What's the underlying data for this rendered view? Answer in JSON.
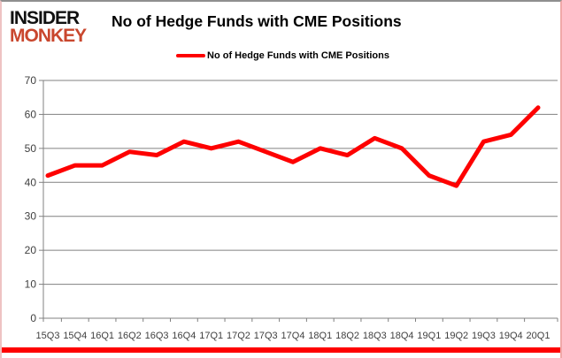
{
  "header": {
    "logo_line1": "INSIDER",
    "logo_line2": "MONKEY",
    "title": "No of Hedge Funds with CME Positions"
  },
  "legend": {
    "label": "No of Hedge Funds with CME Positions",
    "line_color": "#fe0000"
  },
  "chart_data": {
    "type": "line",
    "title": "No of Hedge Funds with CME Positions",
    "categories": [
      "15Q3",
      "15Q4",
      "16Q1",
      "16Q2",
      "16Q3",
      "16Q4",
      "17Q1",
      "17Q2",
      "17Q3",
      "17Q4",
      "18Q1",
      "18Q2",
      "18Q3",
      "18Q4",
      "19Q1",
      "19Q2",
      "19Q3",
      "19Q4",
      "20Q1"
    ],
    "series": [
      {
        "name": "No of Hedge Funds with CME Positions",
        "color": "#fe0000",
        "values": [
          42,
          45,
          45,
          49,
          48,
          52,
          50,
          52,
          49,
          46,
          50,
          48,
          53,
          50,
          42,
          39,
          52,
          54,
          62
        ]
      }
    ],
    "xlabel": "",
    "ylabel": "",
    "ylim": [
      0,
      70
    ],
    "yticks": [
      0,
      10,
      20,
      30,
      40,
      50,
      60,
      70
    ],
    "grid": true,
    "legend_position": "top",
    "gridline_color": "#808080",
    "axis_label_color": "#3f3f3f"
  },
  "colors": {
    "accent_red": "#fe0000",
    "logo_red": "#c9472e",
    "grid_grey": "#808080",
    "border_top_grey": "#8f8f8f",
    "border_side_pink": "#f0a8a8"
  }
}
